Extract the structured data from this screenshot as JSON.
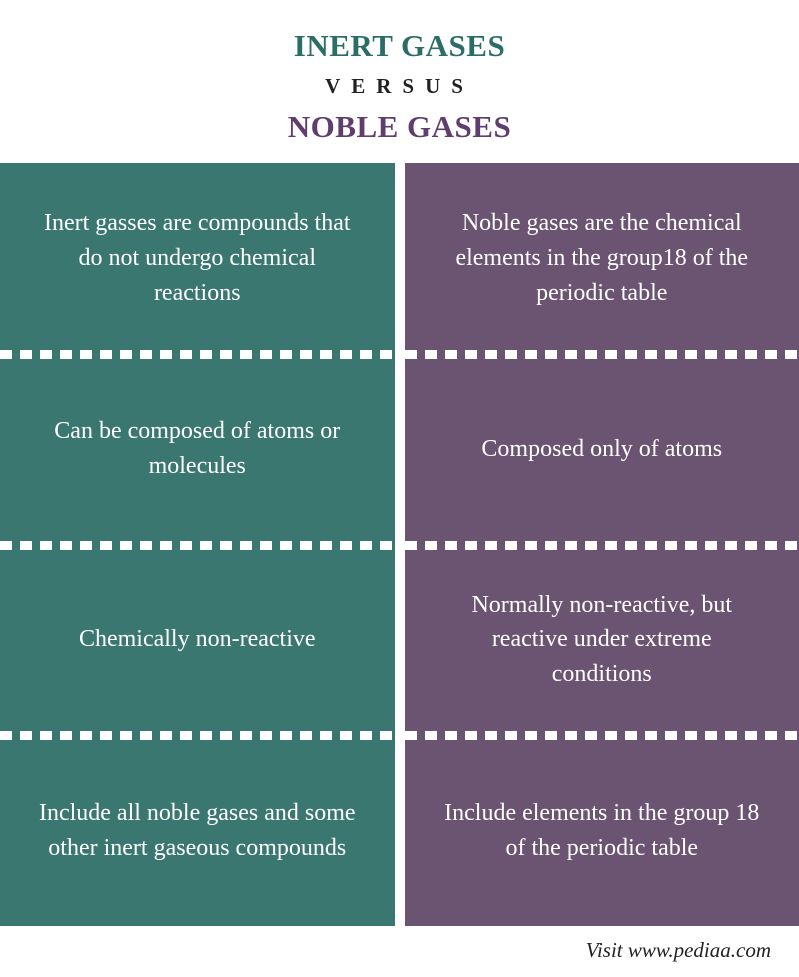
{
  "header": {
    "title_top": "INERT GASES",
    "versus": "VERSUS",
    "title_bottom": "NOBLE GASES"
  },
  "colors": {
    "left_title": "#2b6e68",
    "right_title": "#5f3e6d",
    "left_bg": "#3a7770",
    "right_bg": "#6b5372",
    "divider": "#ffffff"
  },
  "rows": [
    {
      "left": "Inert gasses are compounds that do not undergo chemical reactions",
      "right": "Noble gases are the chemical elements in the group18 of the periodic table"
    },
    {
      "left": "Can be composed of atoms or molecules",
      "right": "Composed only of atoms"
    },
    {
      "left": "Chemically non-reactive",
      "right": "Normally non-reactive, but reactive under extreme conditions"
    },
    {
      "left": "Include all noble gases and some other inert gaseous compounds",
      "right": "Include elements in the group 18 of the periodic table"
    }
  ],
  "footer": "Visit www.pediaa.com",
  "typography": {
    "title_fontsize": 31,
    "versus_fontsize": 21,
    "cell_fontsize": 24,
    "footer_fontsize": 21,
    "font_family": "Georgia, serif"
  }
}
